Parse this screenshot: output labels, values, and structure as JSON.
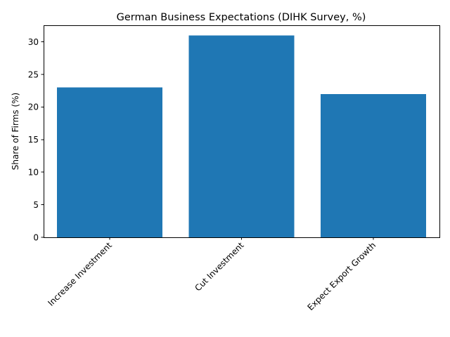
{
  "chart_data": {
    "type": "bar",
    "title": "German Business Expectations (DIHK Survey, %)",
    "xlabel": "",
    "ylabel": "Share of Firms (%)",
    "categories": [
      "Increase Investment",
      "Cut Investment",
      "Expect Export Growth"
    ],
    "values": [
      23,
      31,
      22
    ],
    "ylim": [
      0,
      32.55
    ],
    "yticks": [
      0,
      5,
      10,
      15,
      20,
      25,
      30
    ],
    "bar_color": "#1f77b4",
    "grid": false,
    "legend": "none"
  }
}
